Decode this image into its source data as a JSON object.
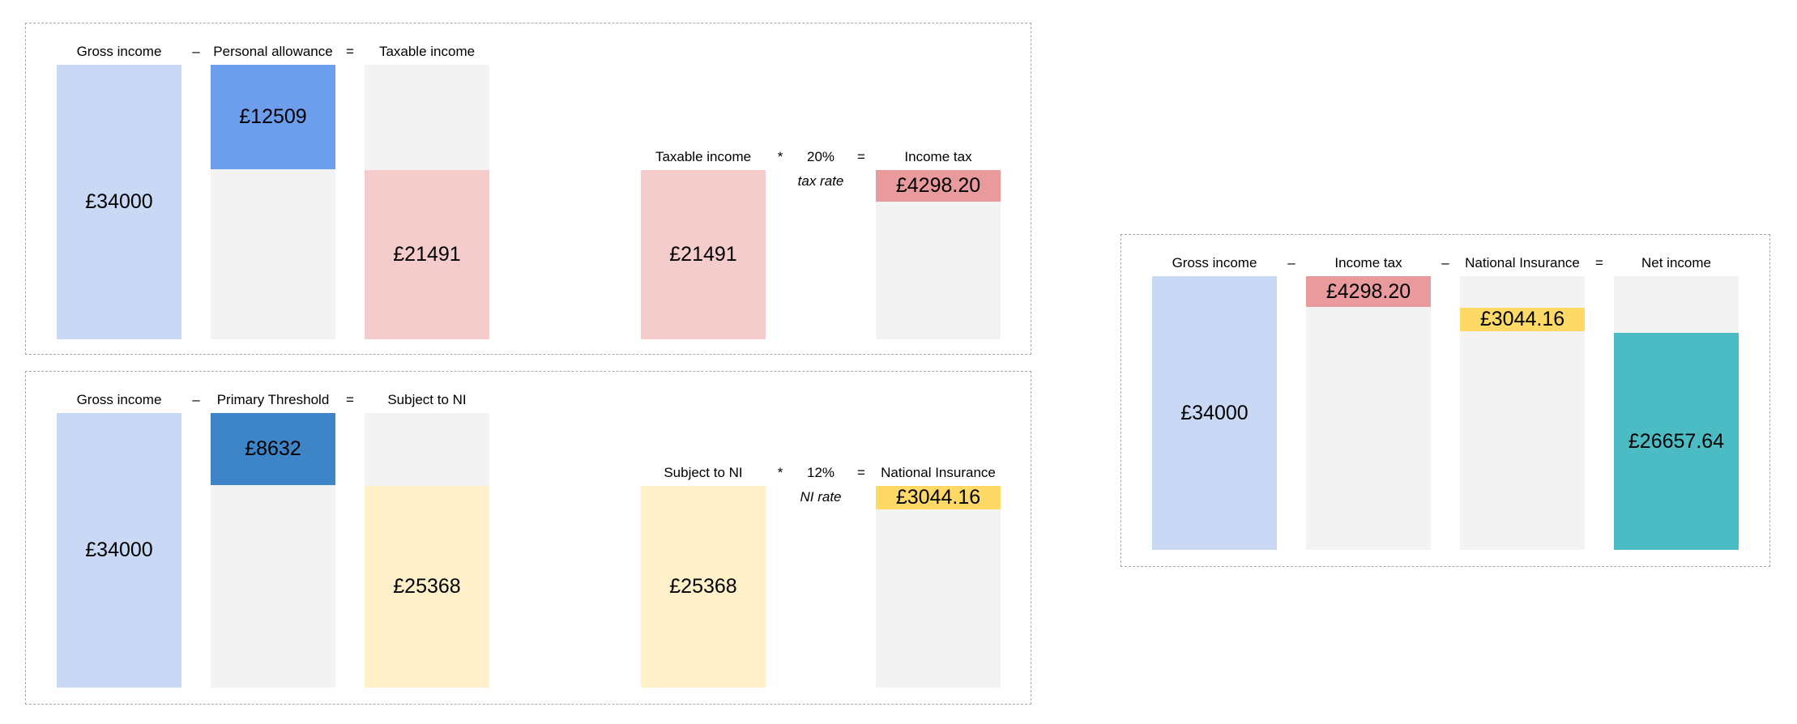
{
  "colors": {
    "gross": "#c9d9f5",
    "allowance": "#6d9eeb",
    "threshold": "#3d85c6",
    "taxable": "#f4cccc",
    "tax": "#e99a9c",
    "ni_base": "#fff0c9",
    "ni": "#ffd966",
    "net": "#4bbbc4",
    "empty": "#f3f3f3"
  },
  "income_tax_panel": {
    "calc1": {
      "gross_label": "Gross income",
      "op_minus": "–",
      "allowance_label": "Personal allowance",
      "op_equals": "=",
      "taxable_label": "Taxable income",
      "gross_value": "£34000",
      "allowance_value": "£12509",
      "taxable_value": "£21491"
    },
    "calc2": {
      "taxable_label": "Taxable income",
      "op_times": "*",
      "rate": "20%",
      "rate_label": "tax rate",
      "op_equals": "=",
      "tax_label": "Income tax",
      "taxable_value": "£21491",
      "tax_value": "£4298.20"
    }
  },
  "ni_panel": {
    "calc1": {
      "gross_label": "Gross income",
      "op_minus": "–",
      "threshold_label": "Primary Threshold",
      "op_equals": "=",
      "subject_label": "Subject to NI",
      "gross_value": "£34000",
      "threshold_value": "£8632",
      "subject_value": "£25368"
    },
    "calc2": {
      "subject_label": "Subject to NI",
      "op_times": "*",
      "rate": "12%",
      "rate_label": "NI rate",
      "op_equals": "=",
      "ni_label": "National Insurance",
      "subject_value": "£25368",
      "ni_value": "£3044.16"
    }
  },
  "net_panel": {
    "gross_label": "Gross income",
    "op_minus_1": "–",
    "tax_label": "Income tax",
    "op_minus_2": "–",
    "ni_label": "National Insurance",
    "op_equals": "=",
    "net_label": "Net income",
    "gross_value": "£34000",
    "tax_value": "£4298.20",
    "ni_value": "£3044.16",
    "net_value": "£26657.64"
  }
}
